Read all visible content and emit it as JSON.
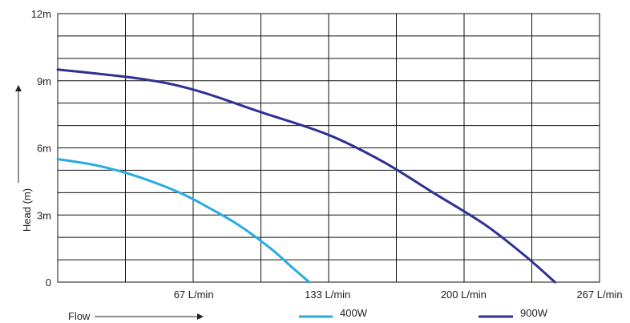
{
  "chart_data": {
    "type": "line",
    "xlabel": "Flow",
    "ylabel": "Head (m)",
    "xlim": [
      0,
      267
    ],
    "ylim": [
      0,
      12
    ],
    "grid": true,
    "legend_position": "bottom",
    "x_ticks": [
      {
        "value": 67,
        "label": "67 L/min"
      },
      {
        "value": 133,
        "label": "133 L/min"
      },
      {
        "value": 200,
        "label": "200 L/min"
      },
      {
        "value": 267,
        "label": "267 L/min"
      }
    ],
    "y_ticks": [
      {
        "value": 0,
        "label": "0"
      },
      {
        "value": 3,
        "label": "3m"
      },
      {
        "value": 6,
        "label": "6m"
      },
      {
        "value": 9,
        "label": "9m"
      },
      {
        "value": 12,
        "label": "12m"
      }
    ],
    "series": [
      {
        "name": "400W",
        "color": "#29abe2",
        "points": [
          [
            0,
            5.5
          ],
          [
            20,
            5.2
          ],
          [
            40,
            4.7
          ],
          [
            60,
            4.0
          ],
          [
            75,
            3.3
          ],
          [
            90,
            2.5
          ],
          [
            105,
            1.5
          ],
          [
            115,
            0.7
          ],
          [
            124,
            0
          ]
        ]
      },
      {
        "name": "900W",
        "color": "#2e3192",
        "points": [
          [
            0,
            9.5
          ],
          [
            40,
            9.1
          ],
          [
            67,
            8.6
          ],
          [
            100,
            7.6
          ],
          [
            133,
            6.6
          ],
          [
            160,
            5.4
          ],
          [
            185,
            4.0
          ],
          [
            210,
            2.6
          ],
          [
            230,
            1.2
          ],
          [
            245,
            0
          ]
        ]
      }
    ]
  }
}
